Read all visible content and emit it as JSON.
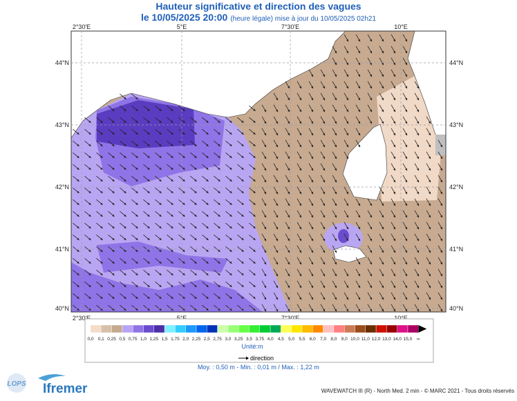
{
  "header": {
    "title": "Hauteur significative et direction des vagues",
    "date": "le 10/05/2025 20:00",
    "note": "(heure légale) mise à jour du 10/05/2025 02h21"
  },
  "map": {
    "lon_labels": [
      "2°30'E",
      "5°E",
      "7°30'E",
      "10°E"
    ],
    "lat_labels": [
      "44°N",
      "43°N",
      "42°N",
      "41°N",
      "40°N"
    ]
  },
  "colorbar": {
    "labels": [
      "0,0",
      "0,1",
      "0,25",
      "0,5",
      "0,75",
      "1,0",
      "1,25",
      "1,5",
      "1,75",
      "2,0",
      "2,25",
      "2,5",
      "2,75",
      "3,0",
      "3,25",
      "3,5",
      "3,75",
      "4,0",
      "4,5",
      "5,0",
      "5,5",
      "6,0",
      "7,0",
      "8,0",
      "9,0",
      "10,0",
      "11,0",
      "12,0",
      "13,0",
      "14,0",
      "15,0",
      "∞"
    ],
    "colors": [
      "#f2dccb",
      "#d8bfa8",
      "#c5a98f",
      "#b7a4f4",
      "#8f74e6",
      "#6a4ccc",
      "#4c2ea8",
      "#7ff0ff",
      "#33ccff",
      "#1a99ff",
      "#0066ee",
      "#0033bb",
      "#ccffaa",
      "#99ff77",
      "#66ff44",
      "#33ee33",
      "#00cc33",
      "#00aa55",
      "#ffff55",
      "#ffe600",
      "#ffbb00",
      "#ff8800",
      "#ffc0c0",
      "#ff8080",
      "#cc7a55",
      "#994d1a",
      "#6b2e00",
      "#cc1100",
      "#990000",
      "#dd1188",
      "#aa0066"
    ],
    "unit": "Unité:m",
    "direction": "direction"
  },
  "stats": "Moy. : 0,50 m  -  Min. : 0,01 m / Max. : 1,22 m",
  "footer": {
    "credit": "WAVEWATCH III (R) - North Med. 2 min - © MARC 2021 - Tous droits réservés",
    "logo_left": "LOPS",
    "logo_right": "Ifremer"
  }
}
